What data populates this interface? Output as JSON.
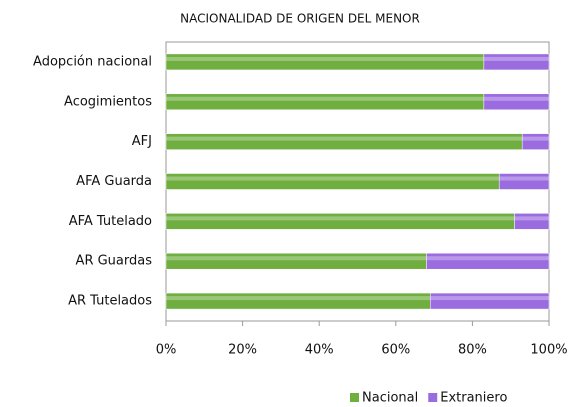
{
  "chart_data": {
    "type": "stacked-bar-horizontal",
    "title": "NACIONALIDAD DE ORIGEN DEL MENOR",
    "categories": [
      "Adopción nacional",
      "Acogimientos",
      "AFJ",
      "AFA Guarda",
      "AFA Tutelado",
      "AR Guardas",
      "AR Tutelados"
    ],
    "series": [
      {
        "name": "Nacional",
        "color": "#6fae3f",
        "values": [
          83,
          83,
          93,
          87,
          91,
          68,
          69
        ]
      },
      {
        "name": "Extraniero",
        "color": "#9b6be0",
        "values": [
          17,
          17,
          7,
          13,
          9,
          32,
          31
        ]
      }
    ],
    "xlim": [
      0,
      100
    ],
    "xticks": [
      {
        "value": 0,
        "label": "0%"
      },
      {
        "value": 20,
        "label": "20%"
      },
      {
        "value": 40,
        "label": "40%"
      },
      {
        "value": 60,
        "label": "60%"
      },
      {
        "value": 80,
        "label": "80%"
      },
      {
        "value": 100,
        "label": "100%"
      }
    ],
    "legend": "bottom"
  }
}
